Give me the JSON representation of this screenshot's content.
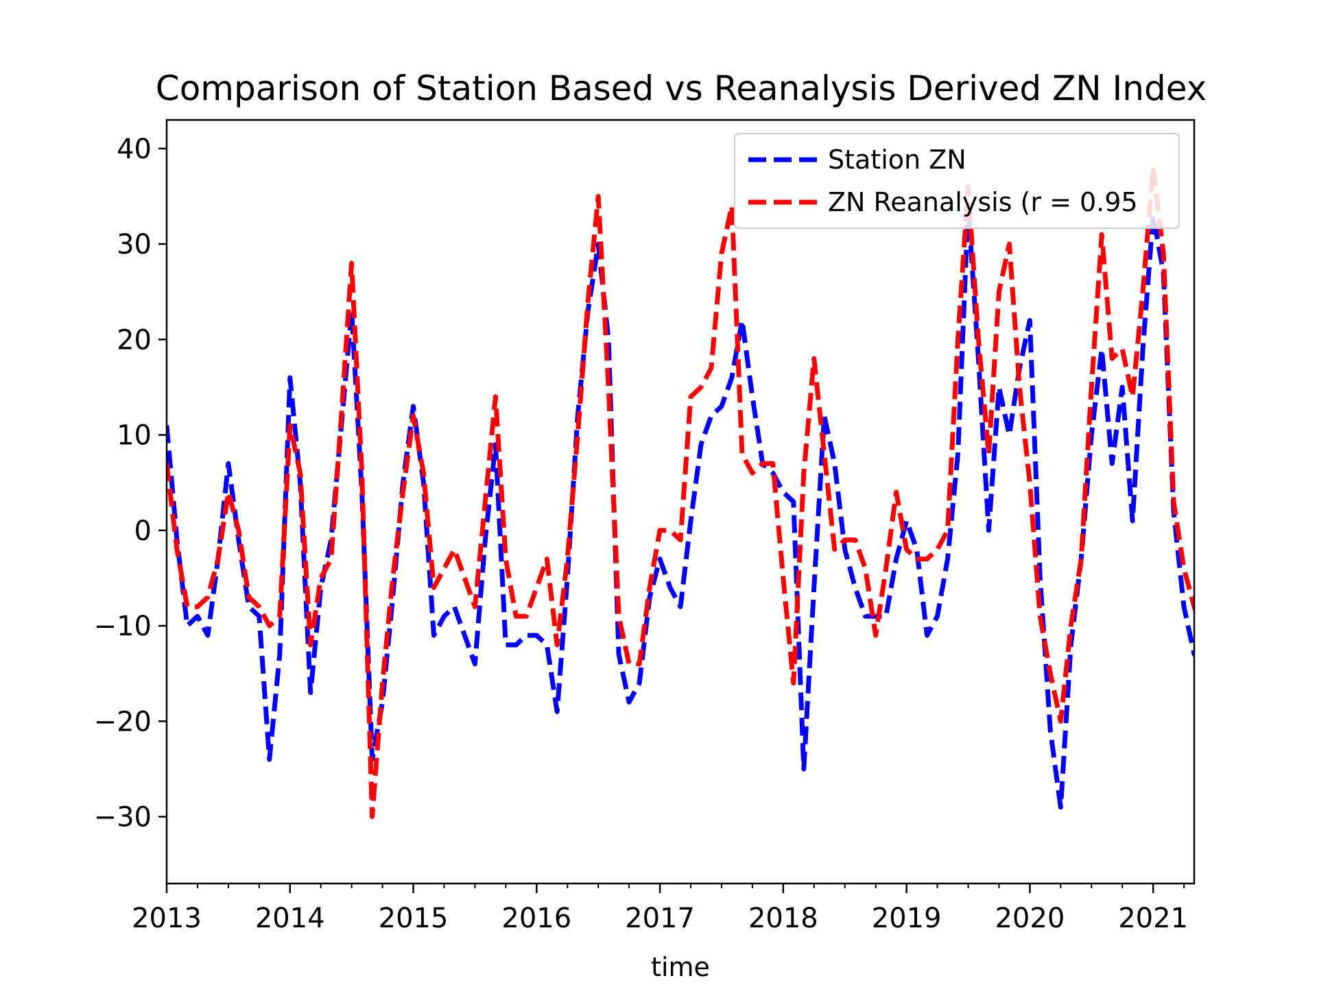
{
  "chart_data": {
    "type": "line",
    "title": "Comparison of Station Based vs Reanalysis Derived ZN Index",
    "xlabel": "time",
    "ylabel": "",
    "xlim": [
      2013.0,
      2021.333
    ],
    "ylim": [
      -37,
      43
    ],
    "x_ticks": [
      {
        "value": 2013,
        "label": "2013"
      },
      {
        "value": 2014,
        "label": "2014"
      },
      {
        "value": 2015,
        "label": "2015"
      },
      {
        "value": 2016,
        "label": "2016"
      },
      {
        "value": 2017,
        "label": "2017"
      },
      {
        "value": 2018,
        "label": "2018"
      },
      {
        "value": 2019,
        "label": "2019"
      },
      {
        "value": 2020,
        "label": "2020"
      },
      {
        "value": 2021,
        "label": "2021"
      }
    ],
    "y_ticks": [
      {
        "value": 40,
        "label": "40"
      },
      {
        "value": 30,
        "label": "30"
      },
      {
        "value": 20,
        "label": "20"
      },
      {
        "value": 10,
        "label": "10"
      },
      {
        "value": 0,
        "label": "0"
      },
      {
        "value": -10,
        "label": "−10"
      },
      {
        "value": -20,
        "label": "−20"
      },
      {
        "value": -30,
        "label": "−30"
      }
    ],
    "grid": false,
    "legend_position": "top-right",
    "x_start": 2013.0,
    "x_step": 0.08333,
    "series": [
      {
        "name": "Station ZN",
        "color": "#0000ff",
        "line_style": "dashed",
        "values": [
          11,
          -1,
          -10,
          -9,
          -11,
          -3,
          7,
          -1,
          -8,
          -9,
          -24,
          -13,
          16,
          5,
          -17,
          -6,
          -1,
          11,
          23,
          4,
          -24,
          -18,
          -7,
          5,
          13,
          5,
          -11,
          -9,
          -8,
          -11,
          -14,
          -1,
          9,
          -12,
          -12,
          -11,
          -11,
          -12,
          -19,
          -5,
          12,
          23,
          30,
          20,
          -13,
          -18,
          -16,
          -7,
          -3,
          -6,
          -8,
          1,
          9,
          12,
          13,
          16,
          22,
          14,
          7,
          6,
          4,
          3,
          -25,
          -6,
          12,
          7,
          -2,
          -6,
          -9,
          -9,
          -9,
          -3,
          1,
          -2,
          -11,
          -9,
          -3,
          8,
          34,
          18,
          0,
          15,
          10,
          17,
          22,
          -5,
          -21,
          -29,
          -12,
          -3,
          10,
          19,
          7,
          15,
          1,
          19,
          33,
          27,
          2,
          -8,
          -13,
          -12,
          -12,
          -11,
          -10,
          -9,
          -19,
          -3,
          0,
          1,
          2,
          4,
          11,
          4,
          -2,
          -10,
          -20,
          -32,
          -22,
          -18,
          -15,
          -4,
          2,
          -8,
          -16,
          1,
          20,
          11,
          -4,
          -27,
          3,
          17,
          14,
          -11,
          -20,
          -17,
          -13,
          -14,
          -14,
          -16,
          -21,
          6,
          9,
          -1,
          -5,
          -9,
          -11,
          -10,
          -8,
          6,
          16,
          8,
          -6,
          14,
          18,
          22,
          28,
          21,
          8,
          0,
          -1,
          -3,
          2,
          8,
          10,
          5,
          0,
          0
        ]
      },
      {
        "name": "ZN Reanalysis (r = 0.95",
        "color": "#ff0000",
        "line_style": "dashed",
        "values": [
          7,
          -2,
          -8,
          -8,
          -7,
          -3,
          4,
          0,
          -7,
          -8,
          -10,
          -9,
          11,
          6,
          -12,
          -5,
          -3,
          12,
          28,
          6,
          -30,
          -16,
          -5,
          4,
          12,
          6,
          -6,
          -4,
          -2,
          -5,
          -8,
          3,
          14,
          -3,
          -9,
          -9,
          -6,
          -3,
          -12,
          -3,
          10,
          24,
          35,
          15,
          -9,
          -14,
          -14,
          -6,
          0,
          0,
          -1,
          14,
          15,
          17,
          29,
          34,
          8,
          6,
          7,
          7,
          -5,
          -16,
          6,
          18,
          8,
          -2,
          -1,
          -1,
          -4,
          -11,
          -4,
          4,
          -2,
          -3,
          -3,
          -2,
          0,
          20,
          36,
          20,
          8,
          25,
          30,
          15,
          5,
          -9,
          -15,
          -20,
          -10,
          -3,
          15,
          31,
          18,
          19,
          14,
          25,
          38,
          29,
          3,
          -4,
          -8,
          -11,
          -9,
          -7,
          -7,
          -8,
          -8,
          -1,
          3,
          5,
          9,
          14,
          20,
          12,
          -1,
          -10,
          -18,
          -30,
          -21,
          -10,
          -10,
          -12,
          -7,
          3,
          -8,
          -12,
          -2,
          18,
          9,
          -2,
          -14,
          4,
          30,
          12,
          -7,
          -16,
          -13,
          -8,
          -11,
          -14,
          -10,
          -6,
          3,
          12,
          0,
          -6,
          -6,
          -5,
          -3,
          -13,
          0,
          22,
          16,
          -1,
          10,
          14,
          25,
          40,
          25,
          12,
          3,
          1,
          4,
          11,
          9,
          7,
          4,
          2,
          5,
          8,
          0,
          -6,
          6,
          16,
          -3,
          -23,
          -19,
          -12,
          -2,
          4,
          10,
          19,
          27,
          12,
          -8,
          -14,
          -14,
          6,
          7,
          8,
          -8,
          -20,
          -10,
          4,
          12,
          7,
          3
        ]
      }
    ]
  }
}
